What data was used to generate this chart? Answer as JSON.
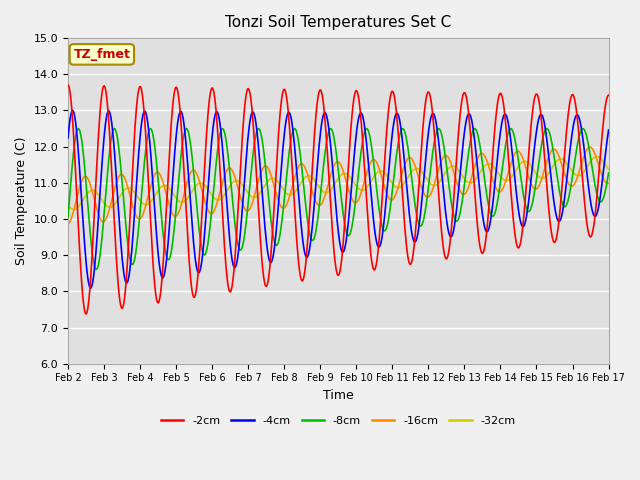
{
  "title": "Tonzi Soil Temperatures Set C",
  "xlabel": "Time",
  "ylabel": "Soil Temperature (C)",
  "ylim": [
    6.0,
    15.0
  ],
  "yticks": [
    6.0,
    7.0,
    8.0,
    9.0,
    10.0,
    11.0,
    12.0,
    13.0,
    14.0,
    15.0
  ],
  "xtick_labels": [
    "Feb 2",
    "Feb 3",
    "Feb 4",
    "Feb 5",
    "Feb 6",
    "Feb 7",
    "Feb 8",
    "Feb 9",
    "Feb 10",
    "Feb 11",
    "Feb 12",
    "Feb 13",
    "Feb 14",
    "Feb 15",
    "Feb 16",
    "Feb 17"
  ],
  "legend_label": "TZ_fmet",
  "series_labels": [
    "-2cm",
    "-4cm",
    "-8cm",
    "-16cm",
    "-32cm"
  ],
  "series_colors": [
    "#ff0000",
    "#0000ff",
    "#00bb00",
    "#ff8800",
    "#cccc00"
  ],
  "plot_bg_color": "#e0e0e0",
  "fig_bg_color": "#f0f0f0",
  "n_days": 15,
  "points_per_day": 48
}
